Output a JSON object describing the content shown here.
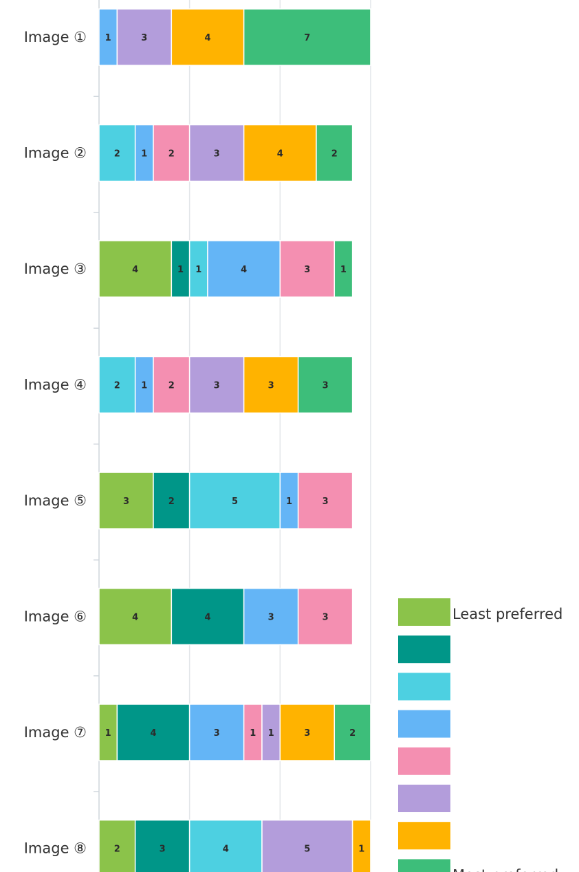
{
  "chart_data": {
    "type": "bar",
    "orientation": "horizontal",
    "stacked": true,
    "categories": [
      "Image ①",
      "Image ②",
      "Image ③",
      "Image ④",
      "Image ⑤",
      "Image ⑥",
      "Image ⑦",
      "Image ⑧"
    ],
    "xlim": [
      0,
      15
    ],
    "grid": true,
    "legend_position": "bottom-right",
    "legend_labels": [
      "Least preferred",
      "",
      "",
      "",
      "",
      "",
      "",
      "Most preferred"
    ],
    "series": [
      {
        "color": "#8BC34A",
        "values": [
          0,
          0,
          4,
          0,
          3,
          4,
          1,
          2
        ]
      },
      {
        "color": "#009688",
        "values": [
          0,
          0,
          1,
          0,
          2,
          4,
          4,
          3
        ]
      },
      {
        "color": "#4DD0E1",
        "values": [
          0,
          2,
          1,
          2,
          5,
          0,
          0,
          4
        ]
      },
      {
        "color": "#64B5F6",
        "values": [
          1,
          1,
          4,
          1,
          1,
          3,
          3,
          0
        ]
      },
      {
        "color": "#F48FB1",
        "values": [
          0,
          2,
          3,
          2,
          3,
          3,
          1,
          0
        ]
      },
      {
        "color": "#B39DDB",
        "values": [
          3,
          3,
          0,
          3,
          0,
          0,
          1,
          5
        ]
      },
      {
        "color": "#FFB300",
        "values": [
          4,
          4,
          0,
          3,
          0,
          0,
          3,
          1
        ]
      },
      {
        "color": "#3DBE7A",
        "values": [
          7,
          2,
          1,
          3,
          0,
          0,
          2,
          0
        ]
      }
    ]
  }
}
